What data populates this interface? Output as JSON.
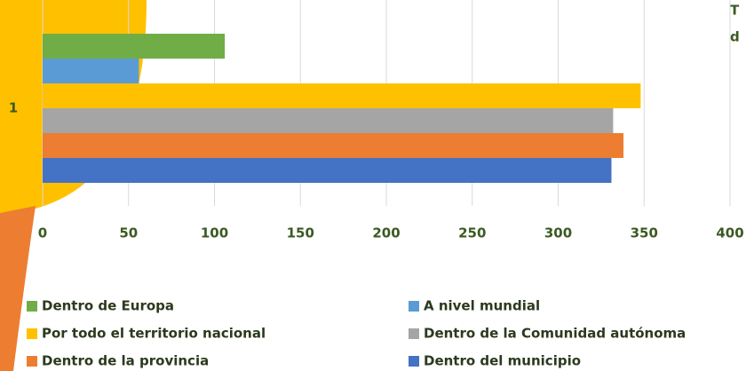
{
  "chart_data": {
    "type": "bar",
    "orientation": "horizontal",
    "title_fragments": [
      "T",
      "d"
    ],
    "categories": [
      "1"
    ],
    "series": [
      {
        "name": "Dentro de Europa",
        "color": "#70ad47",
        "values": [
          106
        ]
      },
      {
        "name": "A nivel mundial",
        "color": "#5b9bd5",
        "values": [
          56
        ]
      },
      {
        "name": "Por todo el territorio nacional",
        "color": "#ffc000",
        "values": [
          348
        ]
      },
      {
        "name": "Dentro de la Comunidad autónoma",
        "color": "#a5a5a5",
        "values": [
          332
        ]
      },
      {
        "name": "Dentro de la provincia",
        "color": "#ed7d31",
        "values": [
          338
        ]
      },
      {
        "name": "Dentro del municipio",
        "color": "#4472c4",
        "values": [
          331
        ]
      }
    ],
    "xlim": [
      0,
      400
    ],
    "xticks": [
      0,
      50,
      100,
      150,
      200,
      250,
      300,
      350,
      400
    ],
    "grid": true
  }
}
